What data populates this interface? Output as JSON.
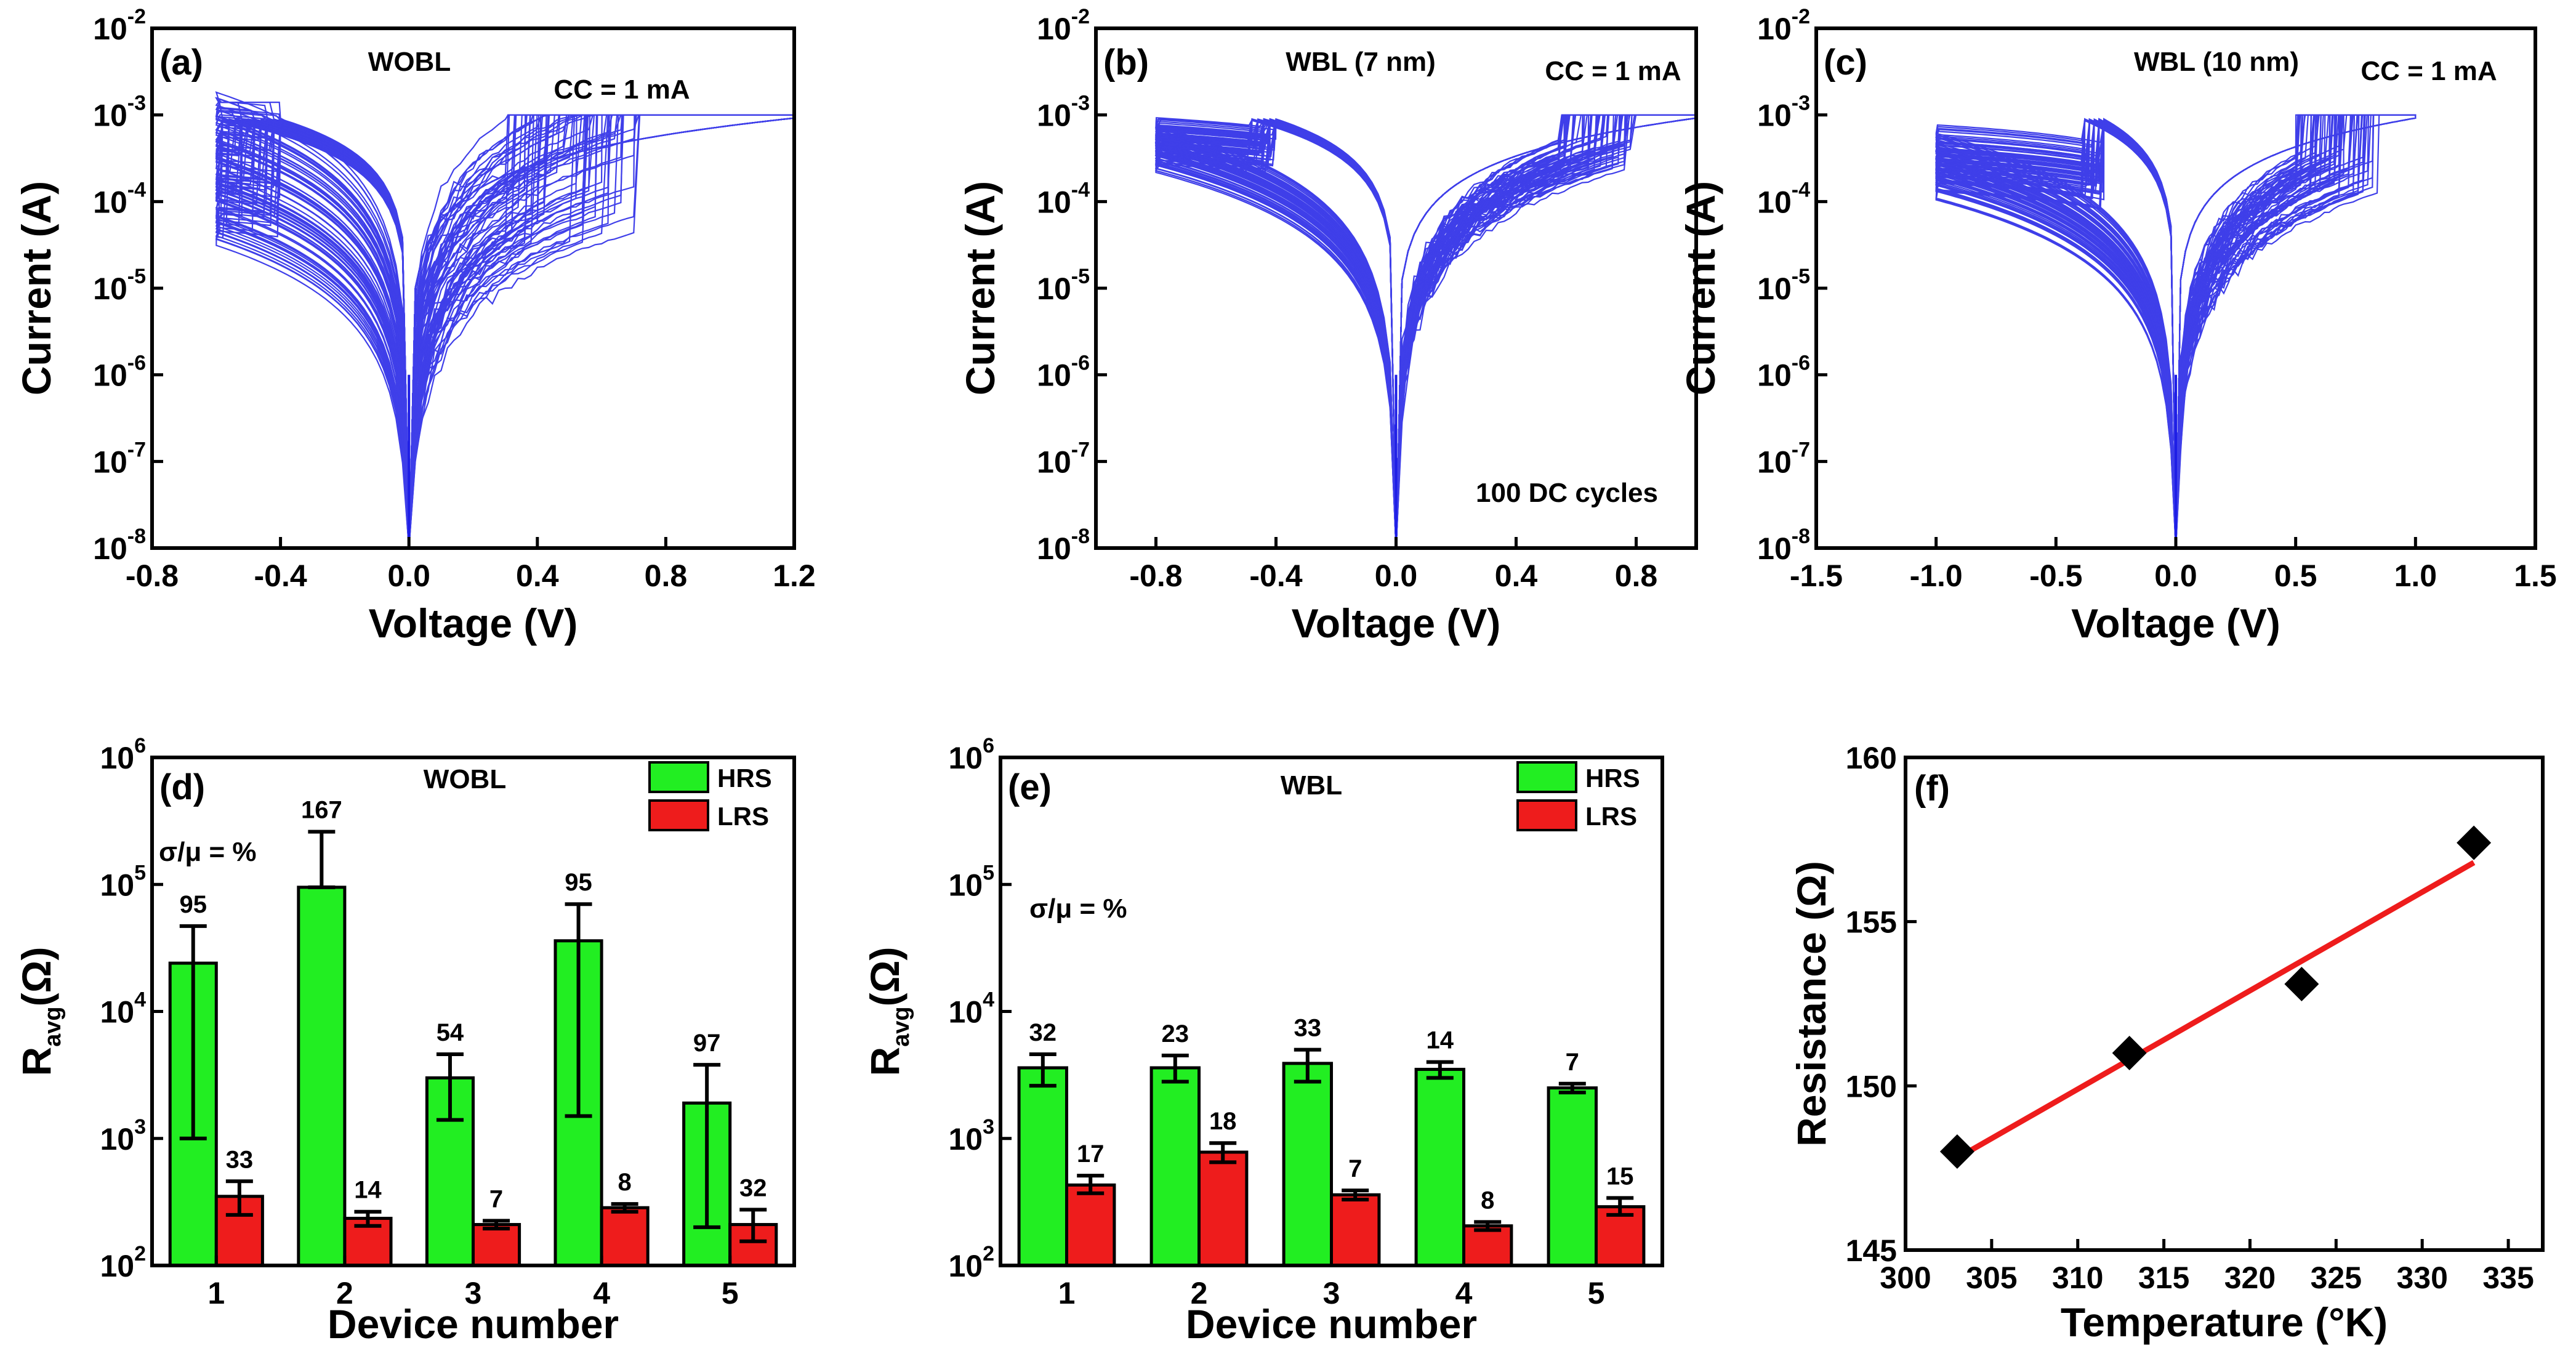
{
  "chart_data": [
    {
      "id": "a",
      "type": "line",
      "panel_label": "(a)",
      "title": "WOBL",
      "annotation": "CC = 1 mA",
      "xlabel": "Voltage (V)",
      "ylabel": "Current (A)",
      "xlim": [
        -0.8,
        1.2
      ],
      "ylim_exp": [
        -8,
        -2
      ],
      "yscale": "log",
      "x_ticks": [
        "-0.8",
        "-0.4",
        "0.0",
        "0.4",
        "0.8",
        "1.2"
      ],
      "x_tick_values": [
        -0.8,
        -0.4,
        0.0,
        0.4,
        0.8,
        1.2
      ],
      "y_tick_exps": [
        "-8",
        "-7",
        "-6",
        "-5",
        "-4",
        "-3",
        "-2"
      ],
      "color": "#1e1ee6",
      "sweep": {
        "v_neg": -0.6,
        "v_pos": 1.2,
        "compliance": 0.001,
        "reset_V": [
          -0.6,
          -0.4
        ],
        "set_V": [
          0.3,
          0.72
        ],
        "hrs_current_range": [
          3e-05,
          0.0012
        ]
      }
    },
    {
      "id": "b",
      "type": "line",
      "panel_label": "(b)",
      "title": "WBL (7 nm)",
      "annotation": "CC = 1 mA",
      "note": "100 DC cycles",
      "xlabel": "Voltage (V)",
      "ylabel": "Current (A)",
      "xlim": [
        -1.0,
        1.0
      ],
      "ylim_exp": [
        -8,
        -2
      ],
      "yscale": "log",
      "x_ticks": [
        "-0.8",
        "-0.4",
        "0.0",
        "0.4",
        "0.8"
      ],
      "x_tick_values": [
        -0.8,
        -0.4,
        0.0,
        0.4,
        0.8
      ],
      "y_tick_exps": [
        "-8",
        "-7",
        "-6",
        "-5",
        "-4",
        "-3",
        "-2"
      ],
      "color": "#1e1ee6",
      "sweep": {
        "v_neg": -0.8,
        "v_pos": 1.0,
        "compliance": 0.001,
        "reset_V": [
          -0.5,
          -0.4
        ],
        "set_V": [
          0.55,
          0.8
        ],
        "hrs_current_range": [
          0.0002,
          0.0005
        ]
      }
    },
    {
      "id": "c",
      "type": "line",
      "panel_label": "(c)",
      "title": "WBL (10 nm)",
      "annotation": "CC = 1 mA",
      "xlabel": "Voltage (V)",
      "ylabel": "Current (A)",
      "xlim": [
        -1.5,
        1.5
      ],
      "ylim_exp": [
        -8,
        -2
      ],
      "yscale": "log",
      "x_ticks": [
        "-1.5",
        "-1.0",
        "-0.5",
        "0.0",
        "0.5",
        "1.0",
        "1.5"
      ],
      "x_tick_values": [
        -1.5,
        -1.0,
        -0.5,
        0.0,
        0.5,
        1.0,
        1.5
      ],
      "y_tick_exps": [
        "-8",
        "-7",
        "-6",
        "-5",
        "-4",
        "-3",
        "-2"
      ],
      "color": "#1e1ee6",
      "sweep": {
        "v_neg": -1.0,
        "v_pos": 1.0,
        "compliance": 0.001,
        "reset_V": [
          -0.4,
          -0.3
        ],
        "set_V": [
          0.5,
          0.85
        ],
        "hrs_current_range": [
          0.0001,
          0.0004
        ]
      }
    },
    {
      "id": "d",
      "type": "bar",
      "panel_label": "(d)",
      "title": "WOBL",
      "annotation": "σ/μ = %",
      "xlabel": "Device number",
      "ylabel_main": "R",
      "ylabel_sub": "avg",
      "ylabel_unit": "(Ω)",
      "yscale": "log",
      "ylim_exp": [
        2,
        6
      ],
      "y_tick_exps": [
        "2",
        "3",
        "4",
        "5",
        "6"
      ],
      "categories": [
        "1",
        "2",
        "3",
        "4",
        "5"
      ],
      "series": [
        {
          "name": "HRS",
          "color": "#22ee22",
          "values": [
            24000,
            95000,
            3000,
            36000,
            1900
          ],
          "err_low": [
            1000,
            95000,
            1400,
            1500,
            200
          ],
          "err_high": [
            47000,
            260000,
            4600,
            70000,
            3800
          ],
          "labels": [
            "95",
            "167",
            "54",
            "95",
            "97"
          ]
        },
        {
          "name": "LRS",
          "color": "#ee1c1c",
          "values": [
            350,
            235,
            210,
            285,
            210
          ],
          "err_low": [
            250,
            205,
            195,
            265,
            155
          ],
          "err_high": [
            460,
            265,
            225,
            305,
            275
          ],
          "labels": [
            "33",
            "14",
            "7",
            "8",
            "32"
          ]
        }
      ]
    },
    {
      "id": "e",
      "type": "bar",
      "panel_label": "(e)",
      "title": "WBL",
      "annotation": "σ/μ = %",
      "xlabel": "Device number",
      "ylabel_main": "R",
      "ylabel_sub": "avg",
      "ylabel_unit": "(Ω)",
      "yscale": "log",
      "ylim_exp": [
        2,
        6
      ],
      "y_tick_exps": [
        "2",
        "3",
        "4",
        "5",
        "6"
      ],
      "categories": [
        "1",
        "2",
        "3",
        "4",
        "5"
      ],
      "series": [
        {
          "name": "HRS",
          "color": "#22ee22",
          "values": [
            3600,
            3600,
            3900,
            3500,
            2500
          ],
          "err_low": [
            2600,
            2800,
            2800,
            3000,
            2300
          ],
          "err_high": [
            4600,
            4500,
            5000,
            4000,
            2700
          ],
          "labels": [
            "32",
            "23",
            "33",
            "14",
            "7"
          ]
        },
        {
          "name": "LRS",
          "color": "#ee1c1c",
          "values": [
            430,
            780,
            360,
            205,
            290
          ],
          "err_low": [
            370,
            650,
            330,
            190,
            250
          ],
          "err_high": [
            510,
            920,
            390,
            220,
            340
          ],
          "labels": [
            "17",
            "18",
            "7",
            "8",
            "15"
          ]
        }
      ]
    },
    {
      "id": "f",
      "type": "scatter",
      "panel_label": "(f)",
      "xlabel": "Temperature (°K)",
      "ylabel": "Resistance (Ω)",
      "xlim": [
        300,
        337
      ],
      "ylim": [
        145,
        160
      ],
      "x_ticks": [
        "300",
        "305",
        "310",
        "315",
        "320",
        "325",
        "330",
        "335"
      ],
      "x_tick_values": [
        300,
        305,
        310,
        315,
        320,
        325,
        330,
        335
      ],
      "y_ticks": [
        "145",
        "150",
        "155",
        "160"
      ],
      "y_tick_values": [
        145,
        150,
        155,
        160
      ],
      "x": [
        303,
        313,
        323,
        333
      ],
      "y": [
        148.0,
        151.0,
        153.1,
        157.4
      ],
      "fit": {
        "x": [
          303,
          333
        ],
        "y": [
          147.8,
          156.8
        ],
        "color": "#ee1c1c"
      },
      "marker_color": "#000000"
    }
  ]
}
